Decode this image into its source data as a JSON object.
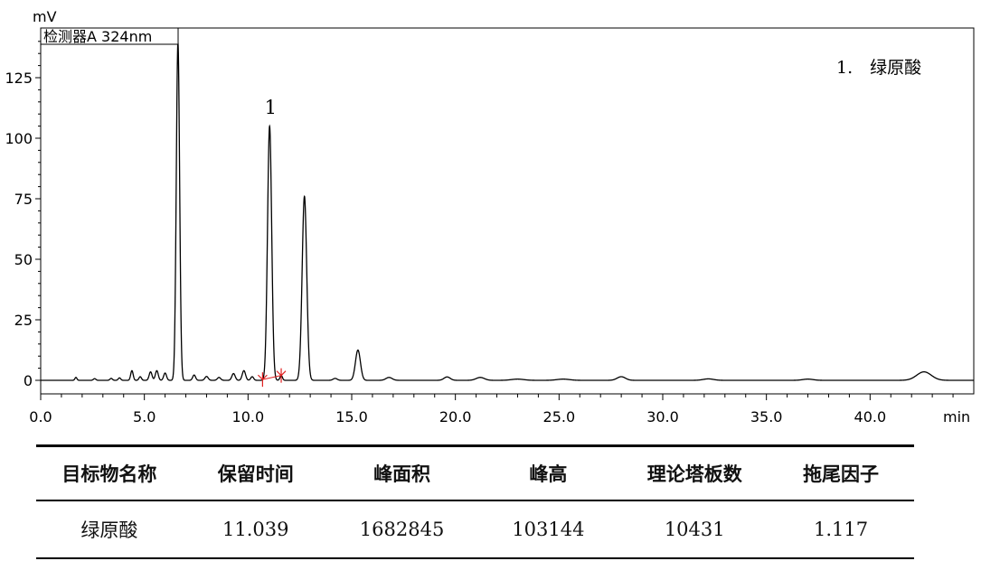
{
  "chart_data": {
    "type": "line",
    "detector_label": "检测器A 324nm",
    "y_unit": "mV",
    "x_unit": "min",
    "xlim": [
      0,
      45
    ],
    "ylim": [
      -3,
      145
    ],
    "x_ticks": [
      0,
      5,
      10,
      15,
      20,
      25,
      30,
      35,
      40
    ],
    "x_tick_labels": [
      "0.0",
      "5.0",
      "10.0",
      "15.0",
      "20.0",
      "25.0",
      "30.0",
      "35.0",
      "40.0"
    ],
    "y_ticks": [
      0,
      25,
      50,
      75,
      100,
      125
    ],
    "y_tick_labels": [
      "0",
      "25",
      "50",
      "75",
      "100",
      "125"
    ],
    "peak_label": "1",
    "peak_label_x": 11.0,
    "legend": "1.　绿原酸",
    "integration_marks": [
      10.7,
      11.6
    ],
    "peaks": [
      {
        "rt": 1.7,
        "height": 1.2,
        "width": 0.05
      },
      {
        "rt": 2.6,
        "height": 0.7,
        "width": 0.06
      },
      {
        "rt": 3.4,
        "height": 0.8,
        "width": 0.06
      },
      {
        "rt": 3.8,
        "height": 1.0,
        "width": 0.06
      },
      {
        "rt": 4.4,
        "height": 4.0,
        "width": 0.06
      },
      {
        "rt": 4.8,
        "height": 1.5,
        "width": 0.06
      },
      {
        "rt": 5.3,
        "height": 3.5,
        "width": 0.07
      },
      {
        "rt": 5.6,
        "height": 4.0,
        "width": 0.07
      },
      {
        "rt": 6.0,
        "height": 3.0,
        "width": 0.07
      },
      {
        "rt": 6.62,
        "height": 139.5,
        "width": 0.08
      },
      {
        "rt": 7.4,
        "height": 2.2,
        "width": 0.07
      },
      {
        "rt": 8.0,
        "height": 1.6,
        "width": 0.08
      },
      {
        "rt": 8.6,
        "height": 1.2,
        "width": 0.08
      },
      {
        "rt": 9.3,
        "height": 2.8,
        "width": 0.08
      },
      {
        "rt": 9.8,
        "height": 4.0,
        "width": 0.08
      },
      {
        "rt": 10.2,
        "height": 1.5,
        "width": 0.07
      },
      {
        "rt": 11.04,
        "height": 105.0,
        "width": 0.1
      },
      {
        "rt": 11.6,
        "height": 2.0,
        "width": 0.06
      },
      {
        "rt": 12.72,
        "height": 76.0,
        "width": 0.11
      },
      {
        "rt": 14.2,
        "height": 0.8,
        "width": 0.1
      },
      {
        "rt": 15.3,
        "height": 12.5,
        "width": 0.12
      },
      {
        "rt": 16.8,
        "height": 1.2,
        "width": 0.15
      },
      {
        "rt": 19.6,
        "height": 1.4,
        "width": 0.15
      },
      {
        "rt": 21.2,
        "height": 1.2,
        "width": 0.2
      },
      {
        "rt": 23.0,
        "height": 0.5,
        "width": 0.3
      },
      {
        "rt": 25.2,
        "height": 0.5,
        "width": 0.3
      },
      {
        "rt": 28.0,
        "height": 1.5,
        "width": 0.2
      },
      {
        "rt": 32.2,
        "height": 0.6,
        "width": 0.25
      },
      {
        "rt": 37.0,
        "height": 0.5,
        "width": 0.25
      },
      {
        "rt": 42.6,
        "height": 3.5,
        "width": 0.35
      }
    ]
  },
  "table": {
    "headers": [
      "目标物名称",
      "保留时间",
      "峰面积",
      "峰高",
      "理论塔板数",
      "拖尾因子"
    ],
    "rows": [
      [
        "绿原酸",
        "11.039",
        "1682845",
        "103144",
        "10431",
        "1.117"
      ]
    ]
  }
}
